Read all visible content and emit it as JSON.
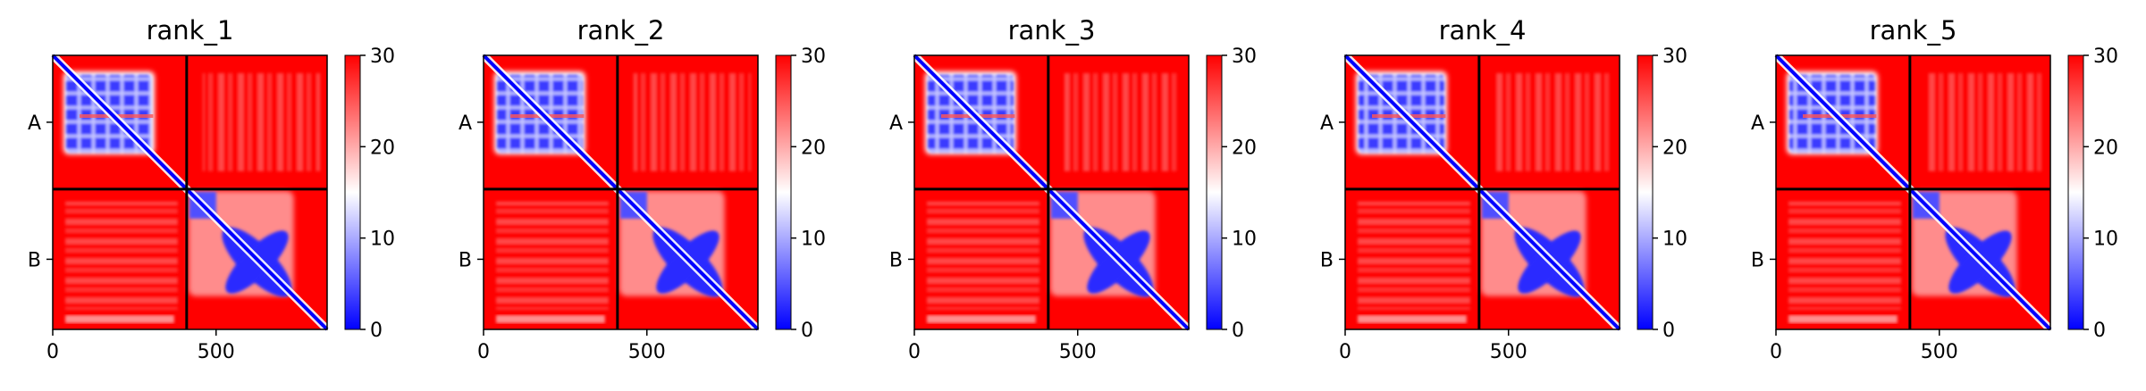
{
  "chart_data": [
    {
      "type": "heatmap",
      "title": "rank_1",
      "chains": [
        "A",
        "B"
      ],
      "xticks": [
        0,
        500
      ],
      "xlim": [
        0,
        840
      ],
      "chain_boundary": 410,
      "colorbar": {
        "ticks": [
          0,
          10,
          20,
          30
        ],
        "range": [
          0,
          30
        ],
        "colors": {
          "low": "#0000ff",
          "mid": "#ffffff",
          "high": "#ff0000"
        }
      }
    },
    {
      "type": "heatmap",
      "title": "rank_2",
      "chains": [
        "A",
        "B"
      ],
      "xticks": [
        0,
        500
      ],
      "xlim": [
        0,
        840
      ],
      "chain_boundary": 410,
      "colorbar": {
        "ticks": [
          0,
          10,
          20,
          30
        ],
        "range": [
          0,
          30
        ],
        "colors": {
          "low": "#0000ff",
          "mid": "#ffffff",
          "high": "#ff0000"
        }
      }
    },
    {
      "type": "heatmap",
      "title": "rank_3",
      "chains": [
        "A",
        "B"
      ],
      "xticks": [
        0,
        500
      ],
      "xlim": [
        0,
        840
      ],
      "chain_boundary": 410,
      "colorbar": {
        "ticks": [
          0,
          10,
          20,
          30
        ],
        "range": [
          0,
          30
        ],
        "colors": {
          "low": "#0000ff",
          "mid": "#ffffff",
          "high": "#ff0000"
        }
      }
    },
    {
      "type": "heatmap",
      "title": "rank_4",
      "chains": [
        "A",
        "B"
      ],
      "xticks": [
        0,
        500
      ],
      "xlim": [
        0,
        840
      ],
      "chain_boundary": 410,
      "colorbar": {
        "ticks": [
          0,
          10,
          20,
          30
        ],
        "range": [
          0,
          30
        ],
        "colors": {
          "low": "#0000ff",
          "mid": "#ffffff",
          "high": "#ff0000"
        }
      }
    },
    {
      "type": "heatmap",
      "title": "rank_5",
      "chains": [
        "A",
        "B"
      ],
      "xticks": [
        0,
        500
      ],
      "xlim": [
        0,
        840
      ],
      "chain_boundary": 410,
      "colorbar": {
        "ticks": [
          0,
          10,
          20,
          30
        ],
        "range": [
          0,
          30
        ],
        "colors": {
          "low": "#0000ff",
          "mid": "#ffffff",
          "high": "#ff0000"
        }
      }
    }
  ]
}
